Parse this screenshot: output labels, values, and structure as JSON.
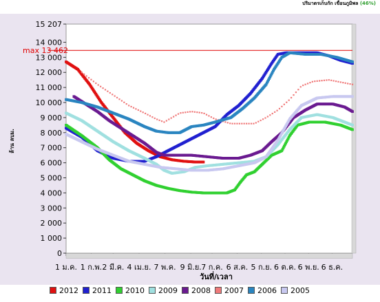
{
  "header": {
    "title_main": "ปริมาตรเก็บกัก เขื่อนภูมิพล",
    "title_pct": "(46%)"
  },
  "chart_data": {
    "type": "scatter",
    "xlabel": "วันที่/เวลา",
    "ylabel": "ล้าน ลบม.",
    "ylim": [
      0,
      15207
    ],
    "xlim": [
      0,
      365
    ],
    "yticks": [
      {
        "v": 0,
        "t": "0"
      },
      {
        "v": 1000,
        "t": "1 000"
      },
      {
        "v": 2000,
        "t": "2 000"
      },
      {
        "v": 3000,
        "t": "3 000"
      },
      {
        "v": 4000,
        "t": "4 000"
      },
      {
        "v": 5000,
        "t": "5 000"
      },
      {
        "v": 6000,
        "t": "6 000"
      },
      {
        "v": 7000,
        "t": "7 000"
      },
      {
        "v": 8000,
        "t": "8 000"
      },
      {
        "v": 9000,
        "t": "9 000"
      },
      {
        "v": 10000,
        "t": "10 000"
      },
      {
        "v": 11000,
        "t": "11 000"
      },
      {
        "v": 12000,
        "t": "12 000"
      },
      {
        "v": 13000,
        "t": "13 000"
      },
      {
        "v": 14000,
        "t": "14 000"
      },
      {
        "v": 15207,
        "t": "15 207"
      }
    ],
    "xticks": [
      {
        "d": 0,
        "t": "1 ม.ค."
      },
      {
        "d": 32,
        "t": "1 ก.พ."
      },
      {
        "d": 60,
        "t": "2 มี.ค."
      },
      {
        "d": 93,
        "t": "4 เม.ย."
      },
      {
        "d": 126,
        "t": "7 พ.ค."
      },
      {
        "d": 159,
        "t": "9 มิ.ย."
      },
      {
        "d": 186,
        "t": "7 ก.ค."
      },
      {
        "d": 218,
        "t": "6 ส.ค."
      },
      {
        "d": 249,
        "t": "5 ก.ย."
      },
      {
        "d": 279,
        "t": "6 ต.ค."
      },
      {
        "d": 309,
        "t": "6 พ.ย."
      },
      {
        "d": 339,
        "t": "6 ธ.ค."
      }
    ],
    "annotations": [
      {
        "text": "max 13 462",
        "y": 13462,
        "color": "#e00000"
      }
    ],
    "series": [
      {
        "name": "2012",
        "color": "#e01010",
        "style": "dense",
        "points": [
          [
            0,
            12700
          ],
          [
            15,
            12200
          ],
          [
            30,
            11200
          ],
          [
            45,
            10000
          ],
          [
            60,
            9000
          ],
          [
            75,
            8000
          ],
          [
            90,
            7300
          ],
          [
            105,
            6800
          ],
          [
            120,
            6400
          ],
          [
            135,
            6200
          ],
          [
            150,
            6100
          ],
          [
            165,
            6050
          ],
          [
            175,
            6050
          ]
        ]
      },
      {
        "name": "2011",
        "color": "#2020d0",
        "style": "dense",
        "points": [
          [
            0,
            8300
          ],
          [
            20,
            7700
          ],
          [
            40,
            6800
          ],
          [
            60,
            6300
          ],
          [
            80,
            6100
          ],
          [
            100,
            6100
          ],
          [
            115,
            6400
          ],
          [
            130,
            6800
          ],
          [
            145,
            7200
          ],
          [
            160,
            7600
          ],
          [
            175,
            8000
          ],
          [
            190,
            8400
          ],
          [
            205,
            9200
          ],
          [
            220,
            9800
          ],
          [
            235,
            10600
          ],
          [
            250,
            11600
          ],
          [
            262,
            12600
          ],
          [
            270,
            13200
          ],
          [
            280,
            13300
          ],
          [
            300,
            13300
          ],
          [
            320,
            13300
          ],
          [
            335,
            13100
          ],
          [
            350,
            12800
          ],
          [
            365,
            12600
          ]
        ]
      },
      {
        "name": "2010",
        "color": "#30d030",
        "style": "dense",
        "points": [
          [
            0,
            8500
          ],
          [
            20,
            7800
          ],
          [
            40,
            7000
          ],
          [
            55,
            6200
          ],
          [
            70,
            5600
          ],
          [
            85,
            5200
          ],
          [
            100,
            4800
          ],
          [
            115,
            4500
          ],
          [
            130,
            4300
          ],
          [
            145,
            4150
          ],
          [
            160,
            4050
          ],
          [
            175,
            4000
          ],
          [
            190,
            4000
          ],
          [
            205,
            4000
          ],
          [
            215,
            4200
          ],
          [
            222,
            4700
          ],
          [
            230,
            5200
          ],
          [
            240,
            5400
          ],
          [
            250,
            5900
          ],
          [
            262,
            6500
          ],
          [
            275,
            6800
          ],
          [
            285,
            7800
          ],
          [
            295,
            8500
          ],
          [
            310,
            8700
          ],
          [
            330,
            8700
          ],
          [
            350,
            8500
          ],
          [
            365,
            8200
          ]
        ]
      },
      {
        "name": "2009",
        "color": "#a0e0e0",
        "style": "dense",
        "points": [
          [
            0,
            9300
          ],
          [
            20,
            8800
          ],
          [
            40,
            8100
          ],
          [
            60,
            7400
          ],
          [
            80,
            6800
          ],
          [
            100,
            6300
          ],
          [
            115,
            5900
          ],
          [
            125,
            5500
          ],
          [
            135,
            5300
          ],
          [
            150,
            5400
          ],
          [
            165,
            5700
          ],
          [
            180,
            5800
          ],
          [
            200,
            5900
          ],
          [
            220,
            6000
          ],
          [
            240,
            6100
          ],
          [
            255,
            6400
          ],
          [
            270,
            7200
          ],
          [
            285,
            8200
          ],
          [
            300,
            9000
          ],
          [
            320,
            9200
          ],
          [
            340,
            9000
          ],
          [
            365,
            8500
          ]
        ]
      },
      {
        "name": "2008",
        "color": "#6a1a90",
        "style": "dense",
        "points": [
          [
            10,
            10400
          ],
          [
            25,
            9900
          ],
          [
            40,
            9400
          ],
          [
            55,
            8800
          ],
          [
            70,
            8300
          ],
          [
            85,
            7800
          ],
          [
            100,
            7300
          ],
          [
            115,
            6700
          ],
          [
            125,
            6500
          ],
          [
            140,
            6500
          ],
          [
            160,
            6500
          ],
          [
            180,
            6400
          ],
          [
            200,
            6300
          ],
          [
            220,
            6300
          ],
          [
            235,
            6500
          ],
          [
            250,
            6800
          ],
          [
            262,
            7400
          ],
          [
            275,
            8000
          ],
          [
            290,
            9000
          ],
          [
            305,
            9500
          ],
          [
            320,
            9900
          ],
          [
            340,
            9900
          ],
          [
            355,
            9700
          ],
          [
            365,
            9400
          ]
        ]
      },
      {
        "name": "2007",
        "color": "#f07a7a",
        "style": "sparse",
        "points": [
          [
            20,
            12000
          ],
          [
            40,
            11200
          ],
          [
            60,
            10500
          ],
          [
            80,
            9800
          ],
          [
            100,
            9300
          ],
          [
            115,
            8900
          ],
          [
            125,
            8700
          ],
          [
            135,
            9000
          ],
          [
            145,
            9300
          ],
          [
            160,
            9400
          ],
          [
            175,
            9300
          ],
          [
            190,
            8900
          ],
          [
            210,
            8600
          ],
          [
            225,
            8600
          ],
          [
            240,
            8600
          ],
          [
            255,
            9000
          ],
          [
            270,
            9500
          ],
          [
            285,
            10200
          ],
          [
            300,
            11100
          ],
          [
            315,
            11400
          ],
          [
            335,
            11500
          ],
          [
            355,
            11300
          ],
          [
            365,
            11200
          ]
        ]
      },
      {
        "name": "2006",
        "color": "#2a85c0",
        "style": "dense",
        "points": [
          [
            0,
            10200
          ],
          [
            20,
            10000
          ],
          [
            40,
            9700
          ],
          [
            60,
            9300
          ],
          [
            80,
            8900
          ],
          [
            100,
            8400
          ],
          [
            115,
            8100
          ],
          [
            130,
            8000
          ],
          [
            145,
            8000
          ],
          [
            160,
            8400
          ],
          [
            175,
            8500
          ],
          [
            190,
            8700
          ],
          [
            210,
            9000
          ],
          [
            225,
            9600
          ],
          [
            240,
            10300
          ],
          [
            255,
            11200
          ],
          [
            265,
            12200
          ],
          [
            275,
            13000
          ],
          [
            285,
            13300
          ],
          [
            305,
            13200
          ],
          [
            325,
            13200
          ],
          [
            345,
            13000
          ],
          [
            365,
            12700
          ]
        ]
      },
      {
        "name": "2005",
        "color": "#c8c8f0",
        "style": "dense",
        "points": [
          [
            0,
            7900
          ],
          [
            20,
            7400
          ],
          [
            40,
            6900
          ],
          [
            60,
            6500
          ],
          [
            80,
            6100
          ],
          [
            100,
            5900
          ],
          [
            120,
            5700
          ],
          [
            140,
            5600
          ],
          [
            160,
            5500
          ],
          [
            180,
            5500
          ],
          [
            200,
            5600
          ],
          [
            220,
            5800
          ],
          [
            240,
            6000
          ],
          [
            255,
            6400
          ],
          [
            270,
            7500
          ],
          [
            285,
            8900
          ],
          [
            300,
            9800
          ],
          [
            320,
            10300
          ],
          [
            340,
            10400
          ],
          [
            365,
            10400
          ]
        ]
      }
    ]
  }
}
